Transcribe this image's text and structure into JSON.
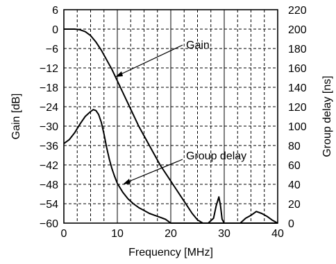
{
  "chart_data": {
    "type": "line",
    "x_axis": {
      "label": "Frequency [MHz]",
      "min": 0,
      "max": 40,
      "ticks": [
        0,
        10,
        20,
        30,
        40
      ],
      "tick_labels": [
        "0",
        "10",
        "20",
        "30",
        "40"
      ]
    },
    "y_axis_left": {
      "label": "Gain [dB]",
      "min": -60,
      "max": 6,
      "ticks": [
        6,
        0,
        -6,
        -12,
        -18,
        -24,
        -30,
        -36,
        -42,
        -48,
        -54,
        -60
      ],
      "tick_labels": [
        "6",
        "0",
        "−6",
        "−12",
        "−18",
        "−24",
        "−30",
        "−36",
        "−42",
        "−48",
        "−54",
        "−60"
      ]
    },
    "y_axis_right": {
      "label": "Group delay [ns]",
      "min": 0,
      "max": 220,
      "ticks": [
        220,
        200,
        180,
        160,
        140,
        120,
        100,
        80,
        60,
        40,
        20,
        0
      ],
      "tick_labels": [
        "220",
        "200",
        "180",
        "160",
        "140",
        "120",
        "100",
        "80",
        "60",
        "40",
        "20",
        "0"
      ]
    },
    "grid": true,
    "series": [
      {
        "name": "Gain",
        "axis": "left",
        "x": [
          0,
          1,
          2,
          3,
          4,
          5,
          6,
          7,
          8,
          9,
          10,
          11,
          12,
          13,
          14,
          15,
          16,
          17,
          18,
          19,
          20,
          21,
          22,
          23,
          24,
          25,
          26,
          27,
          28,
          29,
          30,
          31,
          32,
          33,
          34,
          35,
          36,
          37,
          38,
          39,
          40
        ],
        "y": [
          0,
          0,
          0,
          -0.2,
          -0.8,
          -2,
          -4,
          -6.5,
          -9.5,
          -12.5,
          -16,
          -19.5,
          -23,
          -26.5,
          -30,
          -33,
          -36,
          -39,
          -42,
          -44.5,
          -47,
          -49.5,
          -52,
          -54.5,
          -57,
          -59,
          -60,
          -60,
          -60,
          -60,
          -60,
          -60,
          -60,
          -60,
          -60,
          -60,
          -60,
          -60,
          -60,
          -60,
          -60
        ]
      },
      {
        "name": "Group delay",
        "axis": "right",
        "x": [
          0,
          1,
          2,
          3,
          4,
          5,
          5.5,
          6,
          6.5,
          7,
          7.5,
          8,
          8.5,
          9,
          9.5,
          10,
          11,
          12,
          13,
          14,
          15,
          16,
          17,
          18,
          18.5,
          19,
          19.5,
          20,
          20.5,
          21,
          22,
          23,
          24,
          25,
          26,
          27,
          28,
          28.5,
          29,
          29.3,
          29.6,
          30,
          31,
          32,
          33,
          34,
          35,
          36,
          37,
          38,
          39,
          40
        ],
        "y": [
          82,
          86,
          93,
          102,
          110,
          115,
          117,
          116,
          112,
          104,
          92,
          78,
          66,
          56,
          48,
          41,
          32,
          25,
          20,
          16,
          13,
          10,
          8,
          6,
          5,
          4,
          2,
          0,
          0,
          0,
          0,
          0,
          0,
          0,
          0,
          0,
          5,
          18,
          27,
          18,
          4,
          0,
          0,
          0,
          0,
          5,
          8,
          12,
          10,
          7,
          3,
          0
        ]
      }
    ],
    "annotations": [
      {
        "text": "Gain",
        "series": "Gain"
      },
      {
        "text": "Group delay",
        "series": "Group delay"
      }
    ]
  }
}
